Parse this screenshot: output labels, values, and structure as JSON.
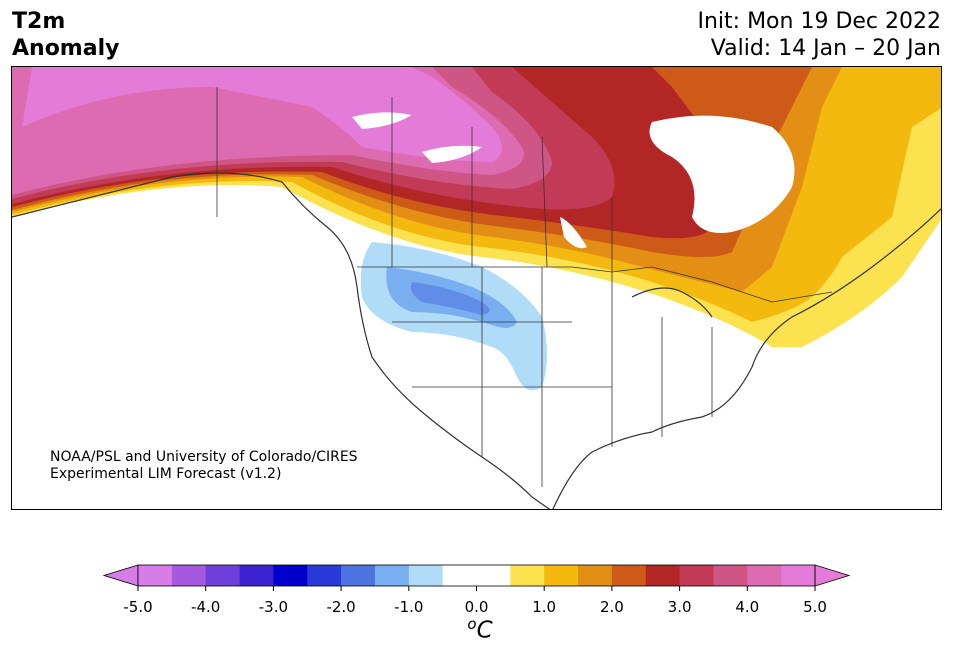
{
  "title": {
    "variable_line1": "T2m",
    "variable_line2": "Anomaly",
    "init": "Init: Mon 19 Dec 2022",
    "valid": "Valid: 14 Jan – 20 Jan"
  },
  "credit": {
    "line1": "NOAA/PSL and University of Colorado/CIRES",
    "line2": "Experimental LIM Forecast (v1.2)"
  },
  "colorbar": {
    "unit_prefix": "o",
    "unit_main": "C",
    "tick_labels": [
      "-5.0",
      "-4.0",
      "-3.0",
      "-2.0",
      "-1.0",
      "0.0",
      "1.0",
      "2.0",
      "3.0",
      "4.0",
      "5.0"
    ],
    "colors": [
      "#d67ce6",
      "#a459e0",
      "#6f3fdc",
      "#3d22d0",
      "#0000cc",
      "#2a3ad9",
      "#4f72e3",
      "#79aef0",
      "#b0dcf8",
      "#ffffff",
      "#ffffff",
      "#fce24e",
      "#f3b90e",
      "#e38e15",
      "#cd5b17",
      "#b32626",
      "#c23a56",
      "#cf5585",
      "#dc6bb2",
      "#e57bd9"
    ],
    "min_color": "#d67ce6",
    "max_color": "#e57bd9"
  },
  "palette": {
    "warm1": "#fce24e",
    "warm2": "#f3b90e",
    "warm3": "#e38e15",
    "warm4": "#cd5b17",
    "warm5": "#b32626",
    "warm6": "#c23a56",
    "warm7": "#cf5585",
    "warm8": "#dc6bb2",
    "warm9": "#e57bd9",
    "cold1": "#b0dcf8",
    "cold2": "#79aef0",
    "cold3": "#4f72e3"
  }
}
